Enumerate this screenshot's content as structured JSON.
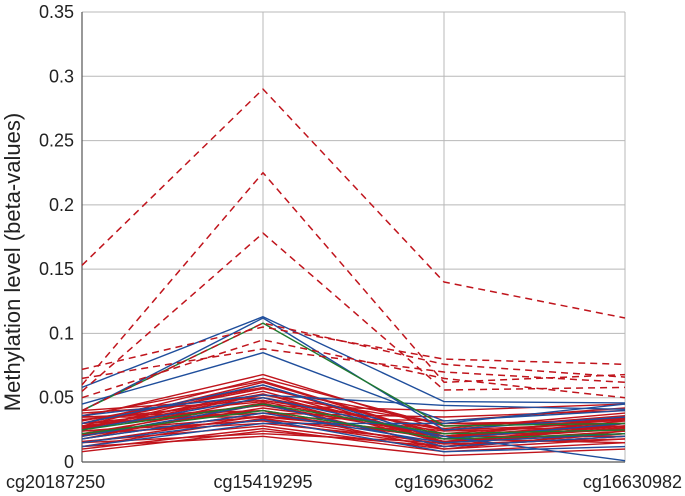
{
  "chart_data": {
    "type": "line",
    "title": "",
    "xlabel": "",
    "ylabel": "Methylation level (beta-values)",
    "categories": [
      "cg20187250",
      "cg15419295",
      "cg16963062",
      "cg16630982"
    ],
    "ylim": [
      0,
      0.35
    ],
    "yticks": [
      0,
      0.05,
      0.1,
      0.15,
      0.2,
      0.25,
      0.3,
      0.35
    ],
    "ytick_labels": [
      "0",
      "0.05",
      "0.1",
      "0.15",
      "0.2",
      "0.25",
      "0.3",
      "0.35"
    ],
    "grid": true,
    "legend": "none",
    "colors": {
      "red": "#c0141c",
      "blue": "#1f4e9c",
      "green": "#1f7a2e",
      "grid": "#b8b8b8",
      "axis": "#555555"
    },
    "series": [
      {
        "group": "red-dashed",
        "values": [
          0.153,
          0.29,
          0.14,
          0.112
        ]
      },
      {
        "group": "red-dashed",
        "values": [
          0.06,
          0.225,
          0.062,
          0.068
        ]
      },
      {
        "group": "red-dashed",
        "values": [
          0.055,
          0.178,
          0.056,
          0.058
        ]
      },
      {
        "group": "red-dashed",
        "values": [
          0.072,
          0.105,
          0.08,
          0.076
        ]
      },
      {
        "group": "red-dashed",
        "values": [
          0.065,
          0.088,
          0.07,
          0.062
        ]
      },
      {
        "group": "red-dashed",
        "values": [
          0.04,
          0.108,
          0.076,
          0.066
        ]
      },
      {
        "group": "red-dashed",
        "values": [
          0.05,
          0.095,
          0.065,
          0.05
        ]
      },
      {
        "group": "blue",
        "values": [
          0.058,
          0.113,
          0.047,
          0.046
        ]
      },
      {
        "group": "blue",
        "values": [
          0.045,
          0.085,
          0.032,
          0.04
        ]
      },
      {
        "group": "blue",
        "values": [
          0.036,
          0.052,
          0.044,
          0.041
        ]
      },
      {
        "group": "blue",
        "values": [
          0.03,
          0.06,
          0.018,
          0.03
        ]
      },
      {
        "group": "blue",
        "values": [
          0.02,
          0.045,
          0.012,
          0.02
        ]
      },
      {
        "group": "blue",
        "values": [
          0.04,
          0.112,
          0.025,
          0.035
        ]
      },
      {
        "group": "blue",
        "values": [
          0.018,
          0.038,
          0.015,
          0.022
        ]
      },
      {
        "group": "blue",
        "values": [
          0.025,
          0.05,
          0.02,
          0.001
        ]
      },
      {
        "group": "blue",
        "values": [
          0.012,
          0.03,
          0.03,
          0.045
        ]
      },
      {
        "group": "blue",
        "values": [
          0.015,
          0.033,
          0.008,
          0.012
        ]
      },
      {
        "group": "green",
        "values": [
          0.04,
          0.108,
          0.028,
          0.03
        ]
      },
      {
        "group": "green",
        "values": [
          0.025,
          0.045,
          0.022,
          0.025
        ]
      },
      {
        "group": "green",
        "values": [
          0.022,
          0.04,
          0.018,
          0.022
        ]
      },
      {
        "group": "red",
        "values": [
          0.035,
          0.068,
          0.025,
          0.03
        ]
      },
      {
        "group": "red",
        "values": [
          0.03,
          0.065,
          0.028,
          0.034
        ]
      },
      {
        "group": "red",
        "values": [
          0.028,
          0.062,
          0.02,
          0.028
        ]
      },
      {
        "group": "red",
        "values": [
          0.032,
          0.058,
          0.022,
          0.025
        ]
      },
      {
        "group": "red",
        "values": [
          0.026,
          0.055,
          0.018,
          0.032
        ]
      },
      {
        "group": "red",
        "values": [
          0.025,
          0.052,
          0.03,
          0.03
        ]
      },
      {
        "group": "red",
        "values": [
          0.04,
          0.05,
          0.015,
          0.027
        ]
      },
      {
        "group": "red",
        "values": [
          0.038,
          0.048,
          0.026,
          0.038
        ]
      },
      {
        "group": "red",
        "values": [
          0.022,
          0.046,
          0.012,
          0.02
        ]
      },
      {
        "group": "red",
        "values": [
          0.03,
          0.044,
          0.02,
          0.035
        ]
      },
      {
        "group": "red",
        "values": [
          0.02,
          0.042,
          0.024,
          0.028
        ]
      },
      {
        "group": "red",
        "values": [
          0.028,
          0.04,
          0.01,
          0.024
        ]
      },
      {
        "group": "red",
        "values": [
          0.018,
          0.038,
          0.018,
          0.03
        ]
      },
      {
        "group": "red",
        "values": [
          0.015,
          0.036,
          0.02,
          0.025
        ]
      },
      {
        "group": "red",
        "values": [
          0.012,
          0.034,
          0.014,
          0.018
        ]
      },
      {
        "group": "red",
        "values": [
          0.035,
          0.035,
          0.022,
          0.033
        ]
      },
      {
        "group": "red",
        "values": [
          0.024,
          0.032,
          0.012,
          0.022
        ]
      },
      {
        "group": "red",
        "values": [
          0.022,
          0.03,
          0.016,
          0.026
        ]
      },
      {
        "group": "red",
        "values": [
          0.016,
          0.028,
          0.01,
          0.018
        ]
      },
      {
        "group": "red",
        "values": [
          0.01,
          0.026,
          0.008,
          0.015
        ]
      },
      {
        "group": "red",
        "values": [
          0.008,
          0.024,
          0.012,
          0.02
        ]
      },
      {
        "group": "red",
        "values": [
          0.03,
          0.038,
          0.035,
          0.04
        ]
      },
      {
        "group": "red",
        "values": [
          0.027,
          0.053,
          0.016,
          0.028
        ]
      },
      {
        "group": "red",
        "values": [
          0.033,
          0.047,
          0.02,
          0.03
        ]
      },
      {
        "group": "red",
        "values": [
          0.02,
          0.05,
          0.025,
          0.036
        ]
      },
      {
        "group": "red",
        "values": [
          0.025,
          0.06,
          0.015,
          0.024
        ]
      },
      {
        "group": "red",
        "values": [
          0.03,
          0.057,
          0.03,
          0.032
        ]
      },
      {
        "group": "red",
        "values": [
          0.018,
          0.045,
          0.012,
          0.03
        ]
      },
      {
        "group": "red",
        "values": [
          0.036,
          0.063,
          0.02,
          0.02
        ]
      },
      {
        "group": "red",
        "values": [
          0.015,
          0.022,
          0.015,
          0.022
        ]
      },
      {
        "group": "red",
        "values": [
          0.012,
          0.02,
          0.005,
          0.01
        ]
      },
      {
        "group": "red",
        "values": [
          0.028,
          0.044,
          0.04,
          0.045
        ]
      },
      {
        "group": "red",
        "values": [
          0.024,
          0.035,
          0.032,
          0.042
        ]
      },
      {
        "group": "red",
        "values": [
          0.035,
          0.04,
          0.018,
          0.015
        ]
      },
      {
        "group": "red",
        "values": [
          0.021,
          0.033,
          0.02,
          0.034
        ]
      }
    ]
  }
}
